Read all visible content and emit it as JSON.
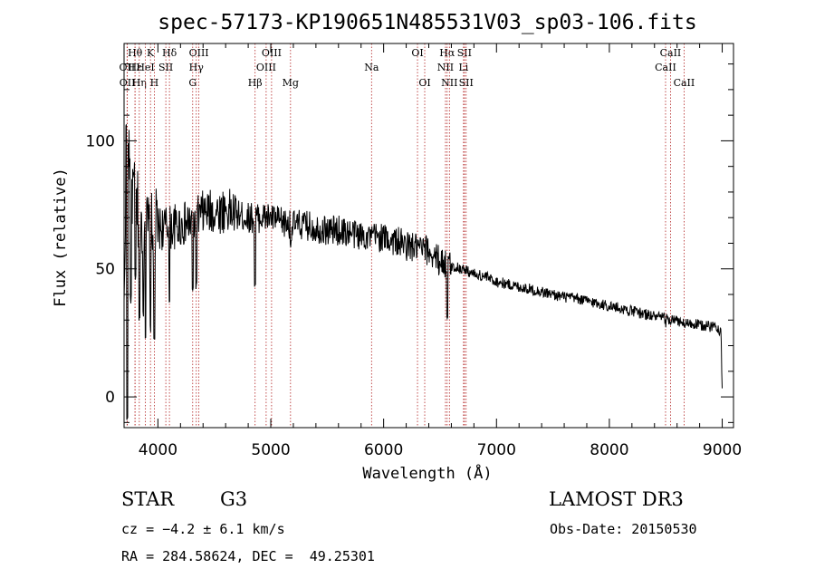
{
  "chart_data": {
    "type": "line",
    "title": "spec-57173-KP190651N485531V03_sp03-106.fits",
    "xlabel": "Wavelength (Å)",
    "ylabel": "Flux (relative)",
    "xlim": [
      3700,
      9100
    ],
    "ylim": [
      -12,
      138
    ],
    "x_ticks": [
      4000,
      5000,
      6000,
      7000,
      8000,
      9000
    ],
    "x_tick_labels": [
      "4000",
      "5000",
      "6000",
      "7000",
      "8000",
      "9000"
    ],
    "y_ticks": [
      0,
      50,
      100
    ],
    "y_tick_labels": [
      "0",
      "50",
      "100"
    ],
    "series": [
      {
        "name": "spectrum",
        "color": "#000000",
        "anchor_points": [
          [
            3700,
            30
          ],
          [
            3720,
            110
          ],
          [
            3740,
            100
          ],
          [
            3760,
            85
          ],
          [
            3800,
            75
          ],
          [
            3850,
            70
          ],
          [
            3900,
            65
          ],
          [
            3950,
            64
          ],
          [
            4000,
            66
          ],
          [
            4100,
            66
          ],
          [
            4200,
            67
          ],
          [
            4300,
            68
          ],
          [
            4400,
            72
          ],
          [
            4500,
            72
          ],
          [
            4600,
            73
          ],
          [
            4700,
            71
          ],
          [
            4800,
            70
          ],
          [
            4900,
            70
          ],
          [
            5000,
            70
          ],
          [
            5100,
            68
          ],
          [
            5200,
            67
          ],
          [
            5300,
            67
          ],
          [
            5400,
            66
          ],
          [
            5500,
            65
          ],
          [
            5600,
            65
          ],
          [
            5700,
            64
          ],
          [
            5800,
            63
          ],
          [
            5900,
            63
          ],
          [
            6000,
            62
          ],
          [
            6100,
            61
          ],
          [
            6200,
            59
          ],
          [
            6300,
            58
          ],
          [
            6400,
            57
          ],
          [
            6500,
            53
          ],
          [
            6600,
            51
          ],
          [
            6700,
            50
          ],
          [
            6800,
            48
          ],
          [
            6900,
            47
          ],
          [
            7000,
            45
          ],
          [
            7100,
            44
          ],
          [
            7200,
            43
          ],
          [
            7300,
            42
          ],
          [
            7400,
            41
          ],
          [
            7500,
            40
          ],
          [
            7600,
            39
          ],
          [
            7700,
            38.5
          ],
          [
            7800,
            37.5
          ],
          [
            7900,
            36.5
          ],
          [
            8000,
            35.5
          ],
          [
            8100,
            34.5
          ],
          [
            8200,
            33.5
          ],
          [
            8300,
            32.5
          ],
          [
            8400,
            31.5
          ],
          [
            8500,
            30.5
          ],
          [
            8600,
            29.5
          ],
          [
            8700,
            28.5
          ],
          [
            8800,
            28
          ],
          [
            8900,
            27.5
          ],
          [
            8950,
            28
          ],
          [
            8990,
            25
          ],
          [
            9000,
            2
          ]
        ],
        "absorption_dips": [
          [
            3727,
            -12
          ],
          [
            3760,
            36
          ],
          [
            3800,
            45
          ],
          [
            3835,
            28
          ],
          [
            3870,
            30
          ],
          [
            3890,
            22
          ],
          [
            3934,
            25
          ],
          [
            3968,
            20
          ],
          [
            4102,
            35
          ],
          [
            4308,
            40
          ],
          [
            4340,
            42
          ],
          [
            4861,
            42
          ],
          [
            5175,
            58
          ],
          [
            5890,
            62
          ],
          [
            6563,
            30
          ],
          [
            6870,
            44
          ],
          [
            8498,
            27
          ],
          [
            8542,
            26
          ],
          [
            8662,
            26
          ]
        ]
      }
    ],
    "line_ids": [
      {
        "label": "Hθ",
        "x": 3798,
        "row": 1
      },
      {
        "label": "OII",
        "x": 3727,
        "row": 2
      },
      {
        "label": "OII",
        "x": 3729,
        "row": 3
      },
      {
        "label": "Hε",
        "x": 3797,
        "row": 2
      },
      {
        "label": "Hη",
        "x": 3835,
        "row": 3
      },
      {
        "label": "HeI",
        "x": 3889,
        "row": 2
      },
      {
        "label": "K",
        "x": 3934,
        "row": 1
      },
      {
        "label": "H",
        "x": 3968,
        "row": 3
      },
      {
        "label": "SII",
        "x": 4070,
        "row": 2
      },
      {
        "label": "Hδ",
        "x": 4102,
        "row": 1
      },
      {
        "label": "OIII",
        "x": 4363,
        "row": 1
      },
      {
        "label": "Hγ",
        "x": 4340,
        "row": 2
      },
      {
        "label": "G",
        "x": 4308,
        "row": 3
      },
      {
        "label": "Hβ",
        "x": 4861,
        "row": 3
      },
      {
        "label": "OIII",
        "x": 5007,
        "row": 1
      },
      {
        "label": "OIII",
        "x": 4959,
        "row": 2
      },
      {
        "label": "Mg",
        "x": 5175,
        "row": 3
      },
      {
        "label": "Na",
        "x": 5893,
        "row": 2
      },
      {
        "label": "OI",
        "x": 6300,
        "row": 1
      },
      {
        "label": "OI",
        "x": 6364,
        "row": 3
      },
      {
        "label": "Hα",
        "x": 6563,
        "row": 1
      },
      {
        "label": "NII",
        "x": 6548,
        "row": 2
      },
      {
        "label": "NII",
        "x": 6583,
        "row": 3
      },
      {
        "label": "SII",
        "x": 6716,
        "row": 1
      },
      {
        "label": "Li",
        "x": 6708,
        "row": 2
      },
      {
        "label": "SII",
        "x": 6731,
        "row": 3
      },
      {
        "label": "CaII",
        "x": 8542,
        "row": 1
      },
      {
        "label": "CaII",
        "x": 8498,
        "row": 2
      },
      {
        "label": "CaII",
        "x": 8662,
        "row": 3
      }
    ],
    "line_id_color": "#b22222"
  },
  "info": {
    "class": "STAR",
    "subclass": "G3",
    "survey": "LAMOST DR3",
    "cz": "cz = −4.2 ± 6.1 km/s",
    "obs_date": "Obs-Date: 20150530",
    "radec": "RA = 284.58624, DEC =  49.25301"
  }
}
